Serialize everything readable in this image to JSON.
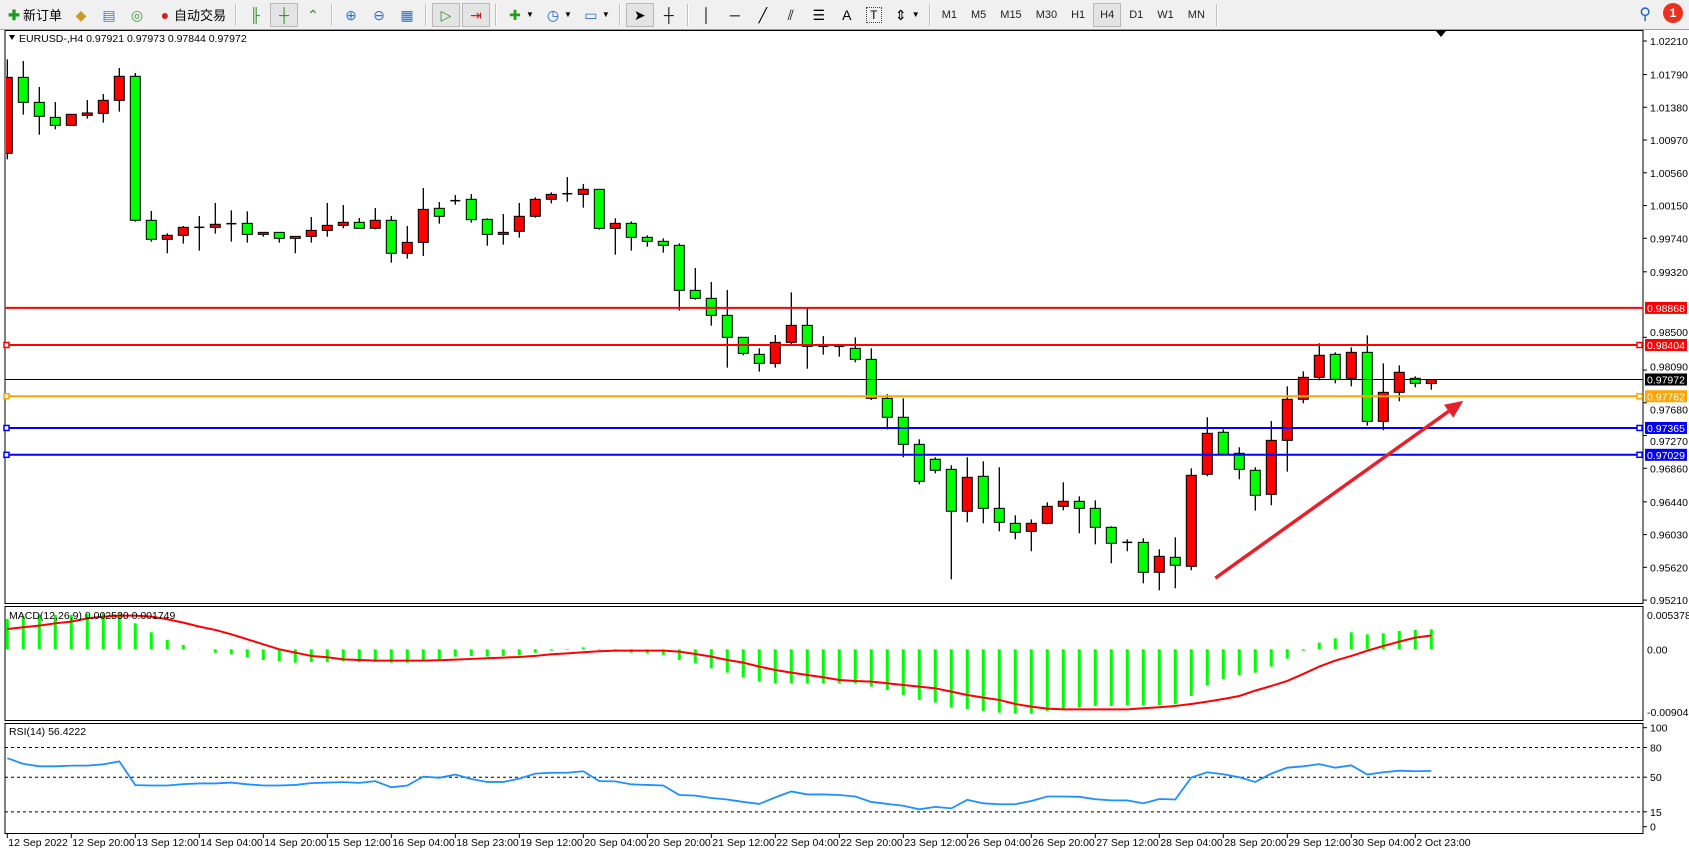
{
  "toolbar": {
    "new_order_label": "新订单",
    "auto_trading_label": "自动交易",
    "timeframes": [
      "M1",
      "M5",
      "M15",
      "M30",
      "H1",
      "H4",
      "D1",
      "W1",
      "MN"
    ],
    "active_timeframe": "H4",
    "notification_count": "1"
  },
  "chart": {
    "title": "EURUSD-,H4  0.97921 0.97973 0.97844 0.97972",
    "symbol": "EURUSD-",
    "timeframe": "H4",
    "colors": {
      "bull": "#ff0000",
      "bear": "#00ff00",
      "macd_hist": "#00ff00",
      "signal": "#ff0000",
      "rsi": "#1e90ff",
      "arrow": "#e8202a"
    },
    "price_axis": [
      "1.02210",
      "1.01790",
      "1.01380",
      "1.00970",
      "1.00560",
      "1.00150",
      "0.99740",
      "0.99320",
      "0.98500",
      "0.98090",
      "0.97680",
      "0.97270",
      "0.96860",
      "0.96440",
      "0.96030",
      "0.95620",
      "0.95210"
    ],
    "hlines": [
      {
        "price": 0.98868,
        "label": "0.98868",
        "color": "#ff0000",
        "handles": false
      },
      {
        "price": 0.98404,
        "label": "0.98404",
        "color": "#ff0000",
        "handles": true
      },
      {
        "price": 0.97972,
        "label": "0.97972",
        "color": "#000000",
        "handles": false
      },
      {
        "price": 0.97762,
        "label": "0.97762",
        "color": "#ffa500",
        "handles": true
      },
      {
        "price": 0.97365,
        "label": "0.97365",
        "color": "#0000ff",
        "handles": true
      },
      {
        "price": 0.97029,
        "label": "0.97029",
        "color": "#0000ff",
        "handles": true
      }
    ],
    "arrow": {
      "from": {
        "bar": 76.5,
        "price": 0.95485
      },
      "to": {
        "bar": 92,
        "price": 0.97705
      }
    },
    "time_labels": [
      "12 Sep 2022",
      "12 Sep 20:00",
      "13 Sep 12:00",
      "14 Sep 04:00",
      "14 Sep 20:00",
      "15 Sep 12:00",
      "16 Sep 04:00",
      "18 Sep 23:00",
      "19 Sep 12:00",
      "20 Sep 04:00",
      "20 Sep 20:00",
      "21 Sep 12:00",
      "22 Sep 04:00",
      "22 Sep 20:00",
      "23 Sep 12:00",
      "26 Sep 04:00",
      "26 Sep 20:00",
      "27 Sep 12:00",
      "28 Sep 04:00",
      "28 Sep 20:00",
      "29 Sep 12:00",
      "30 Sep 04:00",
      "2 Oct 23:00"
    ]
  },
  "macd": {
    "label": "MACD(12,26,9) 0.002530 0.001749",
    "axis": [
      "0.005378",
      "0.00",
      "-0.009043"
    ],
    "range": [
      -0.009043,
      0.005378
    ]
  },
  "rsi": {
    "label": "RSI(14) 56.4222",
    "axis": [
      "100",
      "80",
      "50",
      "15",
      "0"
    ],
    "levels": [
      80,
      50,
      15
    ]
  },
  "chart_data": {
    "type": "candlestick",
    "ylim": [
      0.9521,
      1.0221
    ],
    "ohlc": [
      [
        1.00804,
        1.0198,
        1.00728,
        1.01755
      ],
      [
        1.01755,
        1.0196,
        1.01288,
        1.01442
      ],
      [
        1.01442,
        1.01634,
        1.01037,
        1.01267
      ],
      [
        1.01254,
        1.01446,
        1.01104,
        1.01154
      ],
      [
        1.01154,
        1.01292,
        1.01154,
        1.01292
      ],
      [
        1.01279,
        1.01471,
        1.01238,
        1.01309
      ],
      [
        1.01304,
        1.01546,
        1.01188,
        1.01467
      ],
      [
        1.01467,
        1.01872,
        1.01325,
        1.01768
      ],
      [
        1.01768,
        1.01809,
        0.99948,
        0.99965
      ],
      [
        0.99965,
        1.00082,
        0.99698,
        0.99727
      ],
      [
        0.99727,
        0.99802,
        0.99552,
        0.99777
      ],
      [
        0.99777,
        0.99894,
        0.99673,
        0.99877
      ],
      [
        0.99877,
        1.00019,
        0.99585,
        0.99877
      ],
      [
        0.99877,
        1.00182,
        0.99798,
        0.99915
      ],
      [
        0.99923,
        1.0009,
        0.99698,
        0.99923
      ],
      [
        0.99927,
        1.00077,
        0.99685,
        0.99789
      ],
      [
        0.99789,
        0.99814,
        0.9976,
        0.99814
      ],
      [
        0.99814,
        0.99814,
        0.99685,
        0.99739
      ],
      [
        0.99739,
        0.99764,
        0.99552,
        0.99764
      ],
      [
        0.99764,
        1.00006,
        0.99685,
        0.99839
      ],
      [
        0.99839,
        1.00182,
        0.9976,
        0.99902
      ],
      [
        0.99902,
        1.00157,
        0.99865,
        0.9994
      ],
      [
        0.9994,
        0.99994,
        0.99865,
        0.99865
      ],
      [
        0.99865,
        1.00119,
        0.99852,
        0.99965
      ],
      [
        0.99965,
        1.00019,
        0.99435,
        0.99552
      ],
      [
        0.99552,
        0.99894,
        0.99485,
        0.99689
      ],
      [
        0.99689,
        1.00369,
        0.99518,
        1.00102
      ],
      [
        1.00115,
        1.00194,
        0.99923,
        1.00015
      ],
      [
        1.00211,
        1.00282,
        1.00161,
        1.00211
      ],
      [
        1.00228,
        1.00294,
        0.99935,
        0.99973
      ],
      [
        0.99977,
        0.9999,
        0.99647,
        0.99789
      ],
      [
        0.99789,
        1.00044,
        0.9966,
        0.99814
      ],
      [
        0.99827,
        1.00182,
        0.99748,
        1.00015
      ],
      [
        1.00015,
        1.00253,
        0.99998,
        1.00228
      ],
      [
        1.00228,
        1.00315,
        1.00177,
        1.0029
      ],
      [
        1.00298,
        1.00507,
        1.00198,
        1.00298
      ],
      [
        1.0029,
        1.00419,
        1.00123,
        1.00353
      ],
      [
        1.00353,
        1.00353,
        0.99848,
        0.99864
      ],
      [
        0.99864,
        0.9999,
        0.99535,
        0.99927
      ],
      [
        0.99927,
        0.99952,
        0.99585,
        0.99752
      ],
      [
        0.99752,
        0.99777,
        0.99635,
        0.99702
      ],
      [
        0.99702,
        0.99739,
        0.9956,
        0.99652
      ],
      [
        0.99652,
        0.99677,
        0.98834,
        0.99088
      ],
      [
        0.99088,
        0.99368,
        0.98971,
        0.98988
      ],
      [
        0.98988,
        0.99193,
        0.98646,
        0.98775
      ],
      [
        0.98775,
        0.99092,
        0.9812,
        0.985
      ],
      [
        0.985,
        0.985,
        0.98274,
        0.98299
      ],
      [
        0.98287,
        0.98362,
        0.9807,
        0.98174
      ],
      [
        0.98174,
        0.98529,
        0.9812,
        0.98437
      ],
      [
        0.98437,
        0.99063,
        0.98412,
        0.9865
      ],
      [
        0.9865,
        0.98863,
        0.98107,
        0.98387
      ],
      [
        0.98387,
        0.98516,
        0.98283,
        0.98387
      ],
      [
        0.98374,
        0.98387,
        0.98258,
        0.98387
      ],
      [
        0.98362,
        0.985,
        0.98187,
        0.98224
      ],
      [
        0.98224,
        0.98362,
        0.97715,
        0.97736
      ],
      [
        0.97736,
        0.97787,
        0.97348,
        0.97499
      ],
      [
        0.97499,
        0.97736,
        0.96998,
        0.9716
      ],
      [
        0.9716,
        0.97223,
        0.9666,
        0.96697
      ],
      [
        0.96973,
        0.96998,
        0.96797,
        0.96835
      ],
      [
        0.96847,
        0.96898,
        0.9547,
        0.96322
      ],
      [
        0.96322,
        0.96998,
        0.96184,
        0.96747
      ],
      [
        0.9676,
        0.96948,
        0.96171,
        0.96359
      ],
      [
        0.96359,
        0.96873,
        0.96071,
        0.96184
      ],
      [
        0.96171,
        0.96272,
        0.95971,
        0.96059
      ],
      [
        0.96071,
        0.96221,
        0.95821,
        0.96171
      ],
      [
        0.96171,
        0.96434,
        0.96159,
        0.96384
      ],
      [
        0.96384,
        0.96685,
        0.96334,
        0.96447
      ],
      [
        0.96447,
        0.96509,
        0.96046,
        0.96359
      ],
      [
        0.96359,
        0.96459,
        0.95908,
        0.96121
      ],
      [
        0.96121,
        0.96134,
        0.95671,
        0.95921
      ],
      [
        0.95933,
        0.95971,
        0.95821,
        0.95933
      ],
      [
        0.95933,
        0.95984,
        0.9542,
        0.95558
      ],
      [
        0.95558,
        0.95846,
        0.95333,
        0.95758
      ],
      [
        0.95746,
        0.95996,
        0.95358,
        0.95646
      ],
      [
        0.95633,
        0.9686,
        0.95583,
        0.96772
      ],
      [
        0.96785,
        0.97499,
        0.9676,
        0.97298
      ],
      [
        0.97311,
        0.97348,
        0.97035,
        0.97035
      ],
      [
        0.97048,
        0.97123,
        0.96722,
        0.96847
      ],
      [
        0.96835,
        0.96873,
        0.9633,
        0.96522
      ],
      [
        0.96534,
        0.97452,
        0.96397,
        0.9721
      ],
      [
        0.9721,
        0.97886,
        0.96818,
        0.97724
      ],
      [
        0.97724,
        0.98074,
        0.97674,
        0.97999
      ],
      [
        0.97999,
        0.98425,
        0.97962,
        0.98275
      ],
      [
        0.98287,
        0.98312,
        0.97924,
        0.97974
      ],
      [
        0.97987,
        0.98375,
        0.97886,
        0.98312
      ],
      [
        0.98312,
        0.98525,
        0.97394,
        0.97448
      ],
      [
        0.97448,
        0.98174,
        0.97336,
        0.97811
      ],
      [
        0.97811,
        0.98149,
        0.97699,
        0.98062
      ],
      [
        0.97987,
        0.98012,
        0.97874,
        0.97924
      ],
      [
        0.97921,
        0.97973,
        0.97844,
        0.97972
      ]
    ],
    "macd_hist": [
      0.00384,
      0.00413,
      0.00435,
      0.00435,
      0.00435,
      0.00447,
      0.00456,
      0.00456,
      0.00329,
      0.00215,
      0.00118,
      0.00055,
      4e-05,
      -0.00043,
      -0.00064,
      -0.00101,
      -0.00135,
      -0.00148,
      -0.00169,
      -0.0016,
      -0.0016,
      -0.00152,
      -0.0016,
      -0.0016,
      -0.00169,
      -0.00169,
      -0.00135,
      -0.00127,
      -0.00093,
      -0.00084,
      -0.00093,
      -0.00084,
      -0.00076,
      -0.00043,
      -0.00017,
      -9e-05,
      0.00025,
      -9e-05,
      -0.0003,
      -0.00043,
      -0.0005,
      -0.00071,
      -0.00135,
      -0.00177,
      -0.0024,
      -0.00295,
      -0.00354,
      -0.00409,
      -0.00431,
      -0.00431,
      -0.00431,
      -0.00431,
      -0.00431,
      -0.00431,
      -0.00472,
      -0.00515,
      -0.00578,
      -0.00641,
      -0.00675,
      -0.00739,
      -0.00755,
      -0.0078,
      -0.00802,
      -0.00814,
      -0.00814,
      -0.0078,
      -0.0076,
      -0.00739,
      -0.00718,
      -0.00718,
      -0.00709,
      -0.00709,
      -0.00709,
      -0.00696,
      -0.00591,
      -0.00456,
      -0.00376,
      -0.00325,
      -0.00296,
      -0.00219,
      -0.00118,
      -0.00017,
      0.00084,
      0.00139,
      0.00215,
      0.0019,
      0.00203,
      0.00232,
      0.00245,
      0.00253
    ],
    "macd_signal": [
      0.00257,
      0.00279,
      0.003,
      0.00329,
      0.0035,
      0.00392,
      0.00414,
      0.00426,
      0.00426,
      0.00414,
      0.0038,
      0.00338,
      0.00287,
      0.00245,
      0.0019,
      0.00127,
      0.00063,
      0,
      -0.00042,
      -0.00084,
      -0.00101,
      -0.00127,
      -0.00135,
      -0.00143,
      -0.00143,
      -0.00143,
      -0.00143,
      -0.00139,
      -0.00131,
      -0.00122,
      -0.00114,
      -0.00105,
      -0.00097,
      -0.00084,
      -0.00063,
      -0.00051,
      -0.00038,
      -0.00025,
      -0.00017,
      -0.00017,
      -0.00017,
      -0.00017,
      -0.0003,
      -0.00059,
      -0.00093,
      -0.00135,
      -0.00169,
      -0.00219,
      -0.00262,
      -0.00295,
      -0.00325,
      -0.00354,
      -0.00388,
      -0.00401,
      -0.00409,
      -0.0043,
      -0.00452,
      -0.00473,
      -0.00494,
      -0.00536,
      -0.00578,
      -0.00612,
      -0.00641,
      -0.00692,
      -0.00726,
      -0.00751,
      -0.0076,
      -0.0076,
      -0.0076,
      -0.0076,
      -0.0076,
      -0.00747,
      -0.00734,
      -0.00717,
      -0.00692,
      -0.00663,
      -0.00629,
      -0.00591,
      -0.00523,
      -0.00464,
      -0.00401,
      -0.00312,
      -0.00219,
      -0.00143,
      -0.00084,
      -0.00017,
      0.00042,
      0.00097,
      0.00148,
      0.00175
    ],
    "rsi": [
      69.2,
      63.5,
      61,
      61,
      61.7,
      61.7,
      63,
      66,
      42,
      41.6,
      41.6,
      43,
      43.7,
      43.7,
      44.6,
      42.8,
      41.6,
      41.6,
      42.2,
      44,
      44.6,
      45,
      44.3,
      46,
      39.8,
      41.6,
      50.6,
      49.4,
      52.7,
      48.2,
      45.2,
      45.2,
      48.5,
      53.6,
      54.5,
      54.5,
      56,
      46,
      45.8,
      42.8,
      42.2,
      41.6,
      32,
      31.4,
      29,
      27.5,
      25,
      23,
      29.6,
      35.6,
      32.6,
      32.6,
      32,
      30.5,
      25,
      23,
      21.2,
      17.6,
      20,
      18.5,
      27.2,
      23.6,
      22.7,
      22.7,
      26,
      30.5,
      30.5,
      30.2,
      27.8,
      26.6,
      26.6,
      23.6,
      28,
      27.5,
      49.7,
      55,
      53,
      50,
      45.2,
      53.6,
      59.6,
      61,
      63.2,
      59.6,
      62,
      52.7,
      55,
      56.6,
      56,
      56.4222
    ]
  }
}
